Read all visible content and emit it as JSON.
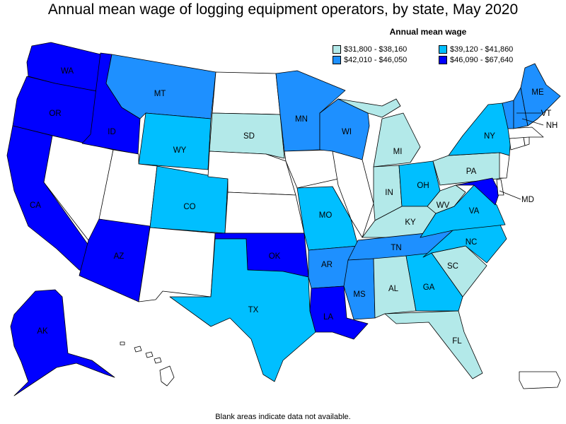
{
  "title": "Annual mean wage of logging equipment operators, by state, May 2020",
  "legend": {
    "title": "Annual mean wage",
    "items": [
      {
        "range": "$31,800 - $38,160",
        "color": "#b3e9e9"
      },
      {
        "range": "$39,120 - $41,860",
        "color": "#00bfff"
      },
      {
        "range": "$42,010 - $46,050",
        "color": "#1e90ff"
      },
      {
        "range": "$46,090 - $67,640",
        "color": "#0000ff"
      }
    ]
  },
  "footnote": "Blank areas indicate data not available.",
  "states": [
    {
      "code": "WA",
      "bin": 4
    },
    {
      "code": "OR",
      "bin": 4
    },
    {
      "code": "CA",
      "bin": 4
    },
    {
      "code": "ID",
      "bin": 4
    },
    {
      "code": "AZ",
      "bin": 4
    },
    {
      "code": "OK",
      "bin": 4
    },
    {
      "code": "LA",
      "bin": 4
    },
    {
      "code": "MD",
      "bin": 4
    },
    {
      "code": "AK",
      "bin": 4
    },
    {
      "code": "MT",
      "bin": 3
    },
    {
      "code": "MN",
      "bin": 3
    },
    {
      "code": "WI",
      "bin": 3
    },
    {
      "code": "AR",
      "bin": 3
    },
    {
      "code": "MS",
      "bin": 3
    },
    {
      "code": "TN",
      "bin": 3
    },
    {
      "code": "ME",
      "bin": 3
    },
    {
      "code": "NH",
      "bin": 3
    },
    {
      "code": "VT",
      "bin": 3
    },
    {
      "code": "WY",
      "bin": 2
    },
    {
      "code": "CO",
      "bin": 2
    },
    {
      "code": "TX",
      "bin": 2
    },
    {
      "code": "MO",
      "bin": 2
    },
    {
      "code": "OH",
      "bin": 2
    },
    {
      "code": "VA",
      "bin": 2
    },
    {
      "code": "NC",
      "bin": 2
    },
    {
      "code": "GA",
      "bin": 2
    },
    {
      "code": "NY",
      "bin": 2
    },
    {
      "code": "SD",
      "bin": 1
    },
    {
      "code": "MI",
      "bin": 1
    },
    {
      "code": "IN",
      "bin": 1
    },
    {
      "code": "KY",
      "bin": 1
    },
    {
      "code": "WV",
      "bin": 1
    },
    {
      "code": "PA",
      "bin": 1
    },
    {
      "code": "AL",
      "bin": 1
    },
    {
      "code": "SC",
      "bin": 1
    },
    {
      "code": "FL",
      "bin": 1
    },
    {
      "code": "NV",
      "bin": 0
    },
    {
      "code": "UT",
      "bin": 0
    },
    {
      "code": "NM",
      "bin": 0
    },
    {
      "code": "ND",
      "bin": 0
    },
    {
      "code": "NE",
      "bin": 0
    },
    {
      "code": "KS",
      "bin": 0
    },
    {
      "code": "IA",
      "bin": 0
    },
    {
      "code": "IL",
      "bin": 0
    },
    {
      "code": "HI",
      "bin": 0
    },
    {
      "code": "PR",
      "bin": 0
    },
    {
      "code": "NJ",
      "bin": 0
    },
    {
      "code": "DE",
      "bin": 0
    },
    {
      "code": "CT",
      "bin": 0
    },
    {
      "code": "MA",
      "bin": 0
    },
    {
      "code": "RI",
      "bin": 0
    }
  ]
}
